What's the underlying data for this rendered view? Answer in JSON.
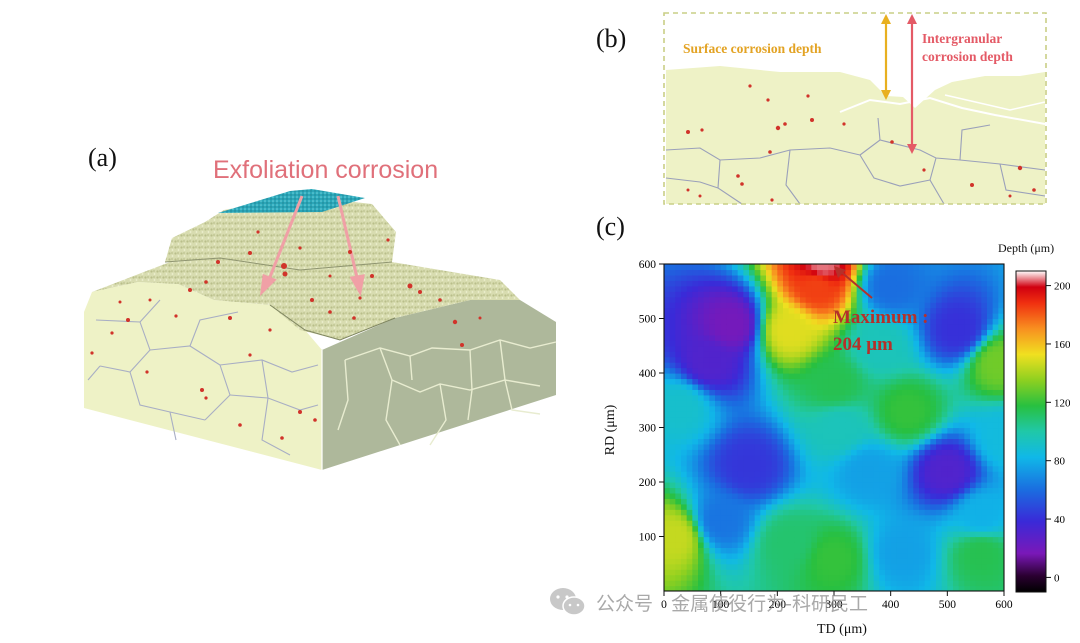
{
  "panel_a": {
    "label": "(a)",
    "annotation": "Exfoliation corrosion"
  },
  "panel_b": {
    "label": "(b)",
    "surface_label": "Surface corrosion depth",
    "intergranular_label_line1": "Intergranular",
    "intergranular_label_line2": "corrosion depth"
  },
  "panel_c": {
    "label": "(c)",
    "x_axis_title": "TD (μm)",
    "y_axis_title": "RD (μm)",
    "colorbar_title": "Depth (μm)",
    "annotation_line1": "Maximum :",
    "annotation_line2": "204 μm"
  },
  "chart_data": {
    "type": "heatmap",
    "title": "",
    "xlabel": "TD (μm)",
    "ylabel": "RD (μm)",
    "xlim": [
      0,
      600
    ],
    "ylim": [
      0,
      600
    ],
    "x_ticks": [
      "0",
      "100",
      "200",
      "300",
      "400",
      "500",
      "600"
    ],
    "y_ticks": [
      "100",
      "200",
      "300",
      "400",
      "500",
      "600"
    ],
    "colorbar": {
      "label": "Depth (μm)",
      "range": [
        -10,
        210
      ],
      "ticks": [
        "0",
        "40",
        "80",
        "120",
        "160",
        "200"
      ]
    },
    "annotation": {
      "text": "Maximum : 204 μm",
      "x": 270,
      "y": 600,
      "value": 204
    },
    "regions": [
      {
        "x": 120,
        "y": 490,
        "depth": 18
      },
      {
        "x": 80,
        "y": 420,
        "depth": 30
      },
      {
        "x": 300,
        "y": 380,
        "depth": 115
      },
      {
        "x": 380,
        "y": 450,
        "depth": 95
      },
      {
        "x": 220,
        "y": 480,
        "depth": 150
      },
      {
        "x": 270,
        "y": 560,
        "depth": 185
      },
      {
        "x": 280,
        "y": 600,
        "depth": 204
      },
      {
        "x": 400,
        "y": 560,
        "depth": 60
      },
      {
        "x": 520,
        "y": 480,
        "depth": 40
      },
      {
        "x": 590,
        "y": 420,
        "depth": 130
      },
      {
        "x": 30,
        "y": 340,
        "depth": 90
      },
      {
        "x": 150,
        "y": 230,
        "depth": 42
      },
      {
        "x": 100,
        "y": 130,
        "depth": 62
      },
      {
        "x": 20,
        "y": 100,
        "depth": 145
      },
      {
        "x": 220,
        "y": 90,
        "depth": 110
      },
      {
        "x": 300,
        "y": 60,
        "depth": 120
      },
      {
        "x": 420,
        "y": 70,
        "depth": 75
      },
      {
        "x": 560,
        "y": 70,
        "depth": 115
      },
      {
        "x": 360,
        "y": 220,
        "depth": 75
      },
      {
        "x": 310,
        "y": 300,
        "depth": 95
      },
      {
        "x": 430,
        "y": 330,
        "depth": 120
      },
      {
        "x": 500,
        "y": 220,
        "depth": 30
      },
      {
        "x": 600,
        "y": 280,
        "depth": 85
      },
      {
        "x": 560,
        "y": 140,
        "depth": 80
      }
    ]
  },
  "watermark": "公众号 · 金属使役行为-科研民工",
  "colors": {
    "annotation_pink": "#e0707a",
    "surface_arrow": "#e8b020",
    "intergranular_arrow": "#e45a66",
    "grain_fill": "#eef2c6",
    "pit_red": "#d1332a",
    "boundary_dash": "#c9cf86"
  }
}
